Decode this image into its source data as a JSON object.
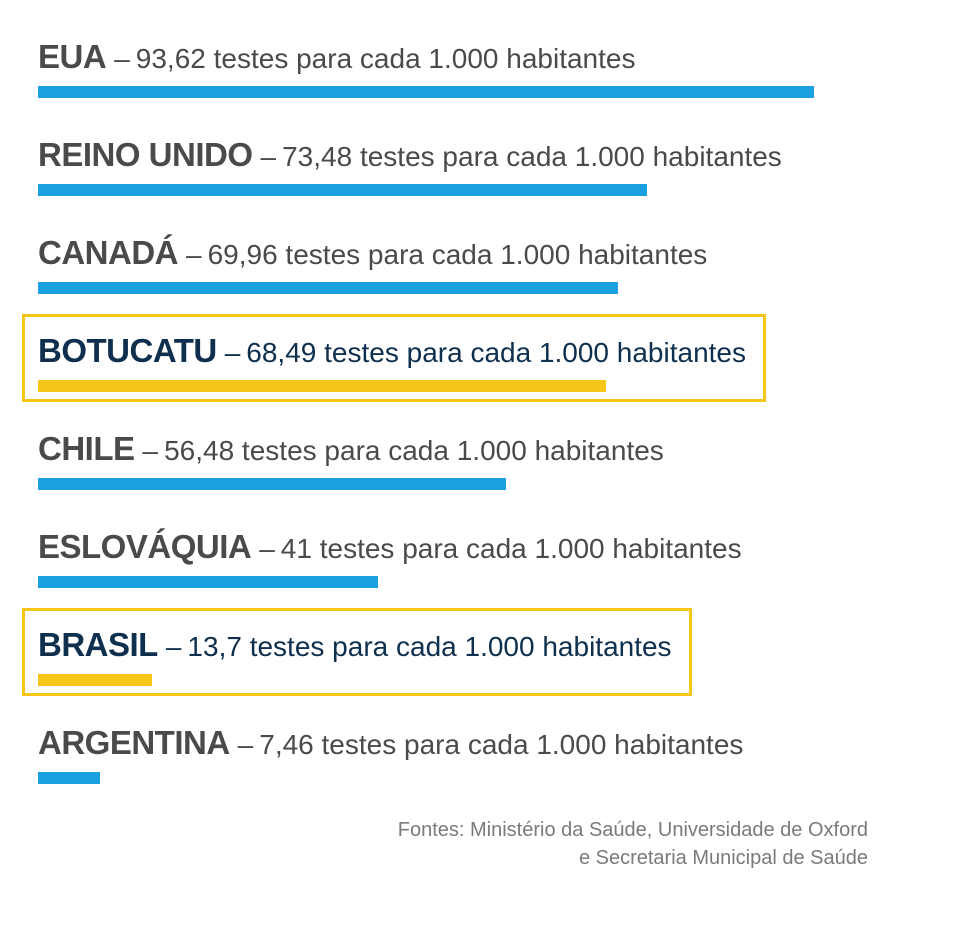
{
  "chart_data": {
    "type": "bar",
    "orientation": "horizontal",
    "unit_text": "testes para cada 1.000 habitantes",
    "separator": "–",
    "categories": [
      "EUA",
      "REINO UNIDO",
      "CANADÁ",
      "BOTUCATU",
      "CHILE",
      "ESLOVÁQUIA",
      "BRASIL",
      "ARGENTINA"
    ],
    "values": [
      93.62,
      73.48,
      69.96,
      68.49,
      56.48,
      41,
      13.7,
      7.46
    ],
    "value_labels": [
      "93,62",
      "73,48",
      "69,96",
      "68,49",
      "56,48",
      "41",
      "13,7",
      "7,46"
    ],
    "highlighted": [
      "BOTUCATU",
      "BRASIL"
    ],
    "xlim": [
      0,
      93.62
    ],
    "grid": false,
    "legend": "none"
  },
  "colors": {
    "bar": "#1a9fe0",
    "highlight": "#f5c518",
    "text": "#4a4a4a",
    "highlight_text": "#0e2f4d",
    "source_text": "#7a7a7a"
  },
  "sources": {
    "line1": "Fontes: Ministério da Saúde, Universidade de Oxford",
    "line2": "e Secretaria Municipal de Saúde"
  }
}
